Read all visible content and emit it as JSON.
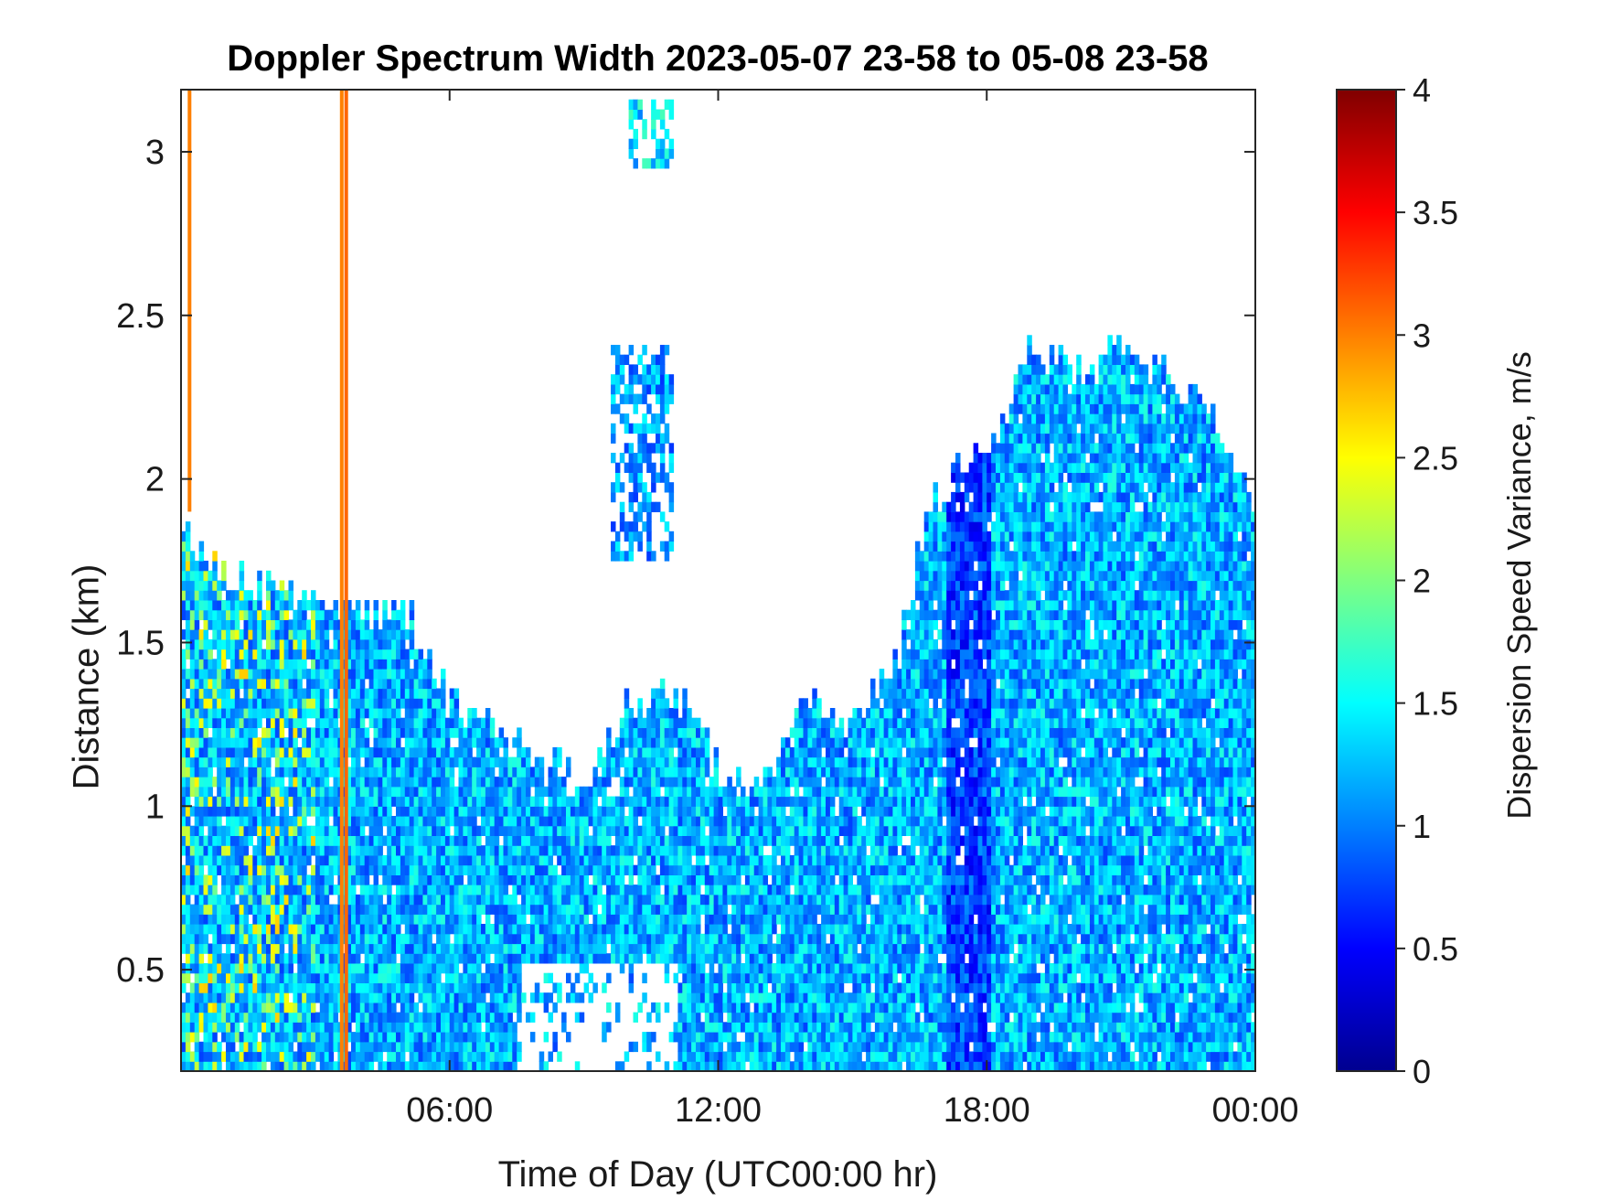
{
  "chart_data": {
    "type": "heatmap",
    "title": "Doppler Spectrum Width 2023-05-07 23-58 to 05-08 23-58",
    "xlabel": "Time of Day (UTC00:00 hr)",
    "ylabel": "Distance (km)",
    "colorbar_label": "Dispersion Speed Variance, m/s",
    "colormap": "jet",
    "xlim": [
      0,
      24
    ],
    "ylim": [
      0.19,
      3.19
    ],
    "clim": [
      0,
      4
    ],
    "x_ticks": [
      6,
      12,
      18,
      24
    ],
    "x_tick_labels": [
      "06:00",
      "12:00",
      "18:00",
      "00:00"
    ],
    "y_ticks": [
      0.5,
      1,
      1.5,
      2,
      2.5,
      3
    ],
    "y_tick_labels": [
      "0.5",
      "1",
      "1.5",
      "2",
      "2.5",
      "3"
    ],
    "colorbar_ticks": [
      0,
      0.5,
      1,
      1.5,
      2,
      2.5,
      3,
      3.5,
      4
    ],
    "colorbar_tick_labels": [
      "0",
      "0.5",
      "1",
      "1.5",
      "2",
      "2.5",
      "3",
      "3.5",
      "4"
    ],
    "grid": false,
    "signal_top_km": {
      "hours": [
        0,
        0.5,
        1,
        2,
        3,
        4,
        5,
        6,
        7,
        8,
        9,
        10,
        11,
        12,
        13,
        14,
        15,
        16,
        16.5,
        17,
        17.5,
        18,
        19,
        20,
        21,
        22,
        23,
        24
      ],
      "top": [
        1.85,
        1.75,
        1.7,
        1.65,
        1.6,
        1.55,
        1.6,
        1.3,
        1.2,
        1.15,
        1.05,
        1.3,
        1.35,
        1.1,
        1.05,
        1.3,
        1.2,
        1.45,
        1.8,
        1.95,
        2.05,
        2.05,
        2.4,
        2.3,
        2.4,
        2.3,
        2.2,
        1.9
      ]
    },
    "near_ground_gap": {
      "x_from": 7.5,
      "x_to": 11,
      "y_from": 0.19,
      "y_to": 0.5
    },
    "aloft_patches": [
      {
        "x_from": 9.6,
        "x_to": 10.9,
        "y_from": 1.75,
        "y_to": 2.4,
        "value": 1.1
      },
      {
        "x_from": 10,
        "x_to": 10.9,
        "y_from": 2.95,
        "y_to": 3.15,
        "value": 1.4
      }
    ],
    "high_variance_columns": [
      {
        "x": 0.15,
        "y_from": 1.9,
        "y_to": 3.19,
        "value": 3.0
      },
      {
        "x": 3.55,
        "y_from": 0.19,
        "y_to": 3.19,
        "value": 3.0
      },
      {
        "x": 3.65,
        "y_from": 0.19,
        "y_to": 3.19,
        "value": 3.1
      }
    ],
    "low_variance_band": {
      "x_from": 17,
      "x_to": 18,
      "value": 0.4
    },
    "typical_value": 1.2
  }
}
